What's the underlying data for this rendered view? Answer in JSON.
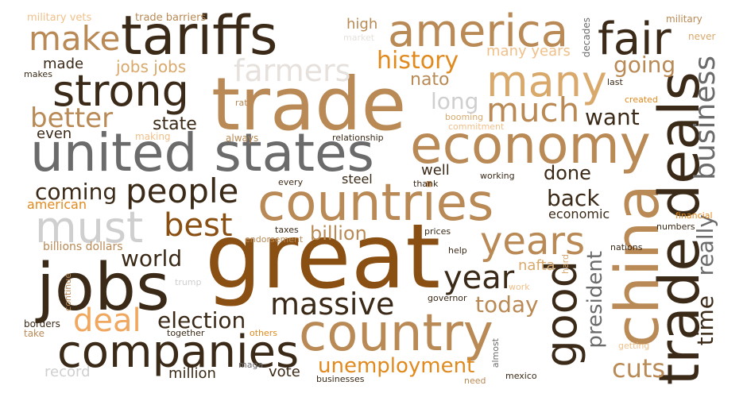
{
  "palette": {
    "dark_brown": "#3b2a17",
    "brown": "#8a4f12",
    "tan": "#b98a55",
    "light_tan": "#d9a86b",
    "orange": "#e08a1e",
    "gray": "#6b6b6b",
    "light_gray": "#cfcfcf",
    "background": "#ffffff"
  },
  "words": [
    {
      "text": "great",
      "color": "#8a4f12"
    },
    {
      "text": "trade",
      "color": "#b98a55"
    },
    {
      "text": "united states",
      "color": "#6b6b6b"
    },
    {
      "text": "tariffs",
      "color": "#3b2a17"
    },
    {
      "text": "economy",
      "color": "#b98a55"
    },
    {
      "text": "countries",
      "color": "#b98a55"
    },
    {
      "text": "country",
      "color": "#b98a55"
    },
    {
      "text": "jobs",
      "color": "#3b2a17"
    },
    {
      "text": "america",
      "color": "#b98a55"
    },
    {
      "text": "companies",
      "color": "#3b2a17"
    },
    {
      "text": "china",
      "color": "#b98a55"
    },
    {
      "text": "trade deals",
      "color": "#3b2a17"
    },
    {
      "text": "many",
      "color": "#d9a86b"
    },
    {
      "text": "strong",
      "color": "#3b2a17"
    },
    {
      "text": "fair",
      "color": "#3b2a17"
    },
    {
      "text": "must",
      "color": "#cfcfcf"
    },
    {
      "text": "years",
      "color": "#b98a55"
    },
    {
      "text": "good",
      "color": "#3b2a17"
    },
    {
      "text": "people",
      "color": "#3b2a17"
    },
    {
      "text": "farmers",
      "color": "#e6e1dc"
    },
    {
      "text": "make",
      "color": "#b98a55"
    },
    {
      "text": "much",
      "color": "#b98a55"
    },
    {
      "text": "business",
      "color": "#6b6b6b"
    },
    {
      "text": "massive",
      "color": "#3b2a17"
    },
    {
      "text": "deal",
      "color": "#f0a860"
    },
    {
      "text": "best",
      "color": "#8a4f12"
    },
    {
      "text": "year",
      "color": "#3b2a17"
    },
    {
      "text": "better",
      "color": "#b98a55"
    },
    {
      "text": "history",
      "color": "#e08a1e"
    },
    {
      "text": "coming",
      "color": "#3b2a17"
    },
    {
      "text": "time",
      "color": "#3b2a17"
    },
    {
      "text": "really",
      "color": "#6b6b6b"
    },
    {
      "text": "president",
      "color": "#6b6b6b"
    },
    {
      "text": "unemployment",
      "color": "#e08a1e"
    },
    {
      "text": "election",
      "color": "#3b2a17"
    },
    {
      "text": "cuts",
      "color": "#b98a55"
    },
    {
      "text": "world",
      "color": "#3b2a17"
    },
    {
      "text": "going",
      "color": "#b98a55"
    },
    {
      "text": "today",
      "color": "#b98a55"
    },
    {
      "text": "back",
      "color": "#3b2a17"
    },
    {
      "text": "long",
      "color": "#cfcfcf"
    },
    {
      "text": "want",
      "color": "#3b2a17"
    },
    {
      "text": "done",
      "color": "#3b2a17"
    },
    {
      "text": "state",
      "color": "#3b2a17"
    },
    {
      "text": "nato",
      "color": "#b98a55"
    },
    {
      "text": "billion",
      "color": "#b98a55"
    },
    {
      "text": "jobs jobs",
      "color": "#d9a86b"
    },
    {
      "text": "many years",
      "color": "#f0c08a"
    },
    {
      "text": "high",
      "color": "#b98a55"
    },
    {
      "text": "made",
      "color": "#3b2a17"
    },
    {
      "text": "even",
      "color": "#3b2a17"
    },
    {
      "text": "american",
      "color": "#e08a1e"
    },
    {
      "text": "billions dollars",
      "color": "#b98a55"
    },
    {
      "text": "million",
      "color": "#3b2a17"
    },
    {
      "text": "vote",
      "color": "#3b2a17"
    },
    {
      "text": "record",
      "color": "#cfcfcf"
    },
    {
      "text": "nafta",
      "color": "#d9a86b"
    },
    {
      "text": "well",
      "color": "#3b2a17"
    },
    {
      "text": "steel",
      "color": "#3b2a17"
    },
    {
      "text": "economic",
      "color": "#3b2a17"
    },
    {
      "text": "military vets",
      "color": "#f0c08a"
    },
    {
      "text": "trade barriers",
      "color": "#b98a55"
    },
    {
      "text": "military",
      "color": "#b98a55"
    },
    {
      "text": "market",
      "color": "#e6e1dc"
    },
    {
      "text": "never",
      "color": "#d9a86b"
    },
    {
      "text": "decades",
      "color": "#6b6b6b"
    },
    {
      "text": "makes",
      "color": "#3b2a17"
    },
    {
      "text": "rate",
      "color": "#b98a55"
    },
    {
      "text": "last",
      "color": "#3b2a17"
    },
    {
      "text": "created",
      "color": "#e08a1e"
    },
    {
      "text": "booming",
      "color": "#d9a86b"
    },
    {
      "text": "commitment",
      "color": "#f0c08a"
    },
    {
      "text": "making",
      "color": "#f0c08a"
    },
    {
      "text": "always",
      "color": "#b98a55"
    },
    {
      "text": "relationship",
      "color": "#3b2a17"
    },
    {
      "text": "working",
      "color": "#3b2a17"
    },
    {
      "text": "every",
      "color": "#3b2a17"
    },
    {
      "text": "thank",
      "color": "#3b2a17"
    },
    {
      "text": "taxes",
      "color": "#3b2a17"
    },
    {
      "text": "endorsement",
      "color": "#b98a55"
    },
    {
      "text": "prices",
      "color": "#3b2a17"
    },
    {
      "text": "help",
      "color": "#3b2a17"
    },
    {
      "text": "nations",
      "color": "#3b2a17"
    },
    {
      "text": "numbers",
      "color": "#3b2a17"
    },
    {
      "text": "financial",
      "color": "#e08a1e"
    },
    {
      "text": "hard",
      "color": "#d9a86b"
    },
    {
      "text": "work",
      "color": "#f0c08a"
    },
    {
      "text": "trump",
      "color": "#cfcfcf"
    },
    {
      "text": "governor",
      "color": "#3b2a17"
    },
    {
      "text": "continue",
      "color": "#b98a55"
    },
    {
      "text": "borders",
      "color": "#3b2a17"
    },
    {
      "text": "take",
      "color": "#b98a55"
    },
    {
      "text": "together",
      "color": "#3b2a17"
    },
    {
      "text": "others",
      "color": "#e08a1e"
    },
    {
      "text": "maga",
      "color": "#6b6b6b"
    },
    {
      "text": "businesses",
      "color": "#3b2a17"
    },
    {
      "text": "need",
      "color": "#b98a55"
    },
    {
      "text": "almost",
      "color": "#6b6b6b"
    },
    {
      "text": "mexico",
      "color": "#3b2a17"
    },
    {
      "text": "getting",
      "color": "#f0c08a"
    }
  ]
}
